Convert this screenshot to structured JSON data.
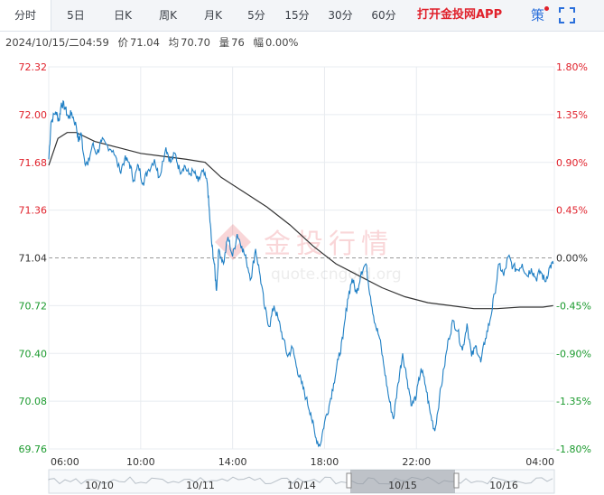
{
  "tabs": [
    {
      "id": "intraday",
      "label": "分时",
      "active": true
    },
    {
      "id": "5day",
      "label": "5日"
    },
    {
      "id": "day",
      "label": "日K"
    },
    {
      "id": "week",
      "label": "周K"
    },
    {
      "id": "month",
      "label": "月K"
    },
    {
      "id": "5min",
      "label": "5分"
    },
    {
      "id": "15min",
      "label": "15分"
    },
    {
      "id": "30min",
      "label": "30分"
    },
    {
      "id": "60min",
      "label": "60分"
    }
  ],
  "promo_text": "打开金投网APP",
  "strategy_label": "策",
  "info": {
    "datetime": "2024/10/15/二04:59",
    "price_label": "价",
    "price": "71.04",
    "avg_label": "均",
    "avg": "70.70",
    "vol_label": "量",
    "vol": "76",
    "amp_label": "幅",
    "amp": "0.00%"
  },
  "watermark": {
    "title": "金投行情",
    "url": "quote.cngold.org"
  },
  "colors": {
    "price_line": "#1f7fc4",
    "avg_line": "#333333",
    "up": "#e0212b",
    "down": "#1b9a2e",
    "neutral": "#333333"
  },
  "chart_data": {
    "type": "line",
    "y_ticks": [
      "72.32",
      "72.00",
      "71.68",
      "71.36",
      "71.04",
      "70.72",
      "70.40",
      "70.08",
      "69.76"
    ],
    "y_tick_values": [
      72.32,
      72.0,
      71.68,
      71.36,
      71.04,
      70.72,
      70.4,
      70.08,
      69.76
    ],
    "pct_ticks": [
      "1.80%",
      "1.35%",
      "0.90%",
      "0.45%",
      "0.00%",
      "-0.45%",
      "-0.90%",
      "-1.35%",
      "-1.80%"
    ],
    "pct_tick_status": [
      "up",
      "up",
      "up",
      "up",
      "neutral",
      "down",
      "down",
      "down",
      "down"
    ],
    "ylim": [
      69.76,
      72.32
    ],
    "reference_price": 71.04,
    "x_ticks": [
      "06:00",
      "10:00",
      "14:00",
      "18:00",
      "22:00",
      "04:00"
    ],
    "x_tick_hours": [
      0,
      4,
      8,
      12,
      16,
      22
    ],
    "x_range_hours": [
      0,
      22
    ],
    "price_series": [
      [
        0,
        71.7
      ],
      [
        0.1,
        71.95
      ],
      [
        0.3,
        72.02
      ],
      [
        0.45,
        71.96
      ],
      [
        0.55,
        72.08
      ],
      [
        0.7,
        72.05
      ],
      [
        0.85,
        71.98
      ],
      [
        1.0,
        72.01
      ],
      [
        1.2,
        71.92
      ],
      [
        1.3,
        71.82
      ],
      [
        1.4,
        71.88
      ],
      [
        1.55,
        71.7
      ],
      [
        1.7,
        71.66
      ],
      [
        1.9,
        71.8
      ],
      [
        2.1,
        71.74
      ],
      [
        2.3,
        71.82
      ],
      [
        2.5,
        71.8
      ],
      [
        2.8,
        71.76
      ],
      [
        3.1,
        71.62
      ],
      [
        3.3,
        71.7
      ],
      [
        3.5,
        71.68
      ],
      [
        3.7,
        71.56
      ],
      [
        3.9,
        71.66
      ],
      [
        4.1,
        71.54
      ],
      [
        4.3,
        71.62
      ],
      [
        4.6,
        71.7
      ],
      [
        4.8,
        71.58
      ],
      [
        5.1,
        71.78
      ],
      [
        5.3,
        71.68
      ],
      [
        5.5,
        71.74
      ],
      [
        5.7,
        71.62
      ],
      [
        5.9,
        71.66
      ],
      [
        6.1,
        71.6
      ],
      [
        6.3,
        71.62
      ],
      [
        6.5,
        71.55
      ],
      [
        6.7,
        71.62
      ],
      [
        6.9,
        71.54
      ],
      [
        7.0,
        71.32
      ],
      [
        7.1,
        71.12
      ],
      [
        7.2,
        71.0
      ],
      [
        7.3,
        70.82
      ],
      [
        7.4,
        71.1
      ],
      [
        7.6,
        71.0
      ],
      [
        7.8,
        71.18
      ],
      [
        8.0,
        71.05
      ],
      [
        8.2,
        71.2
      ],
      [
        8.4,
        71.12
      ],
      [
        8.6,
        71.02
      ],
      [
        8.8,
        70.9
      ],
      [
        9.0,
        71.1
      ],
      [
        9.2,
        70.92
      ],
      [
        9.4,
        70.7
      ],
      [
        9.6,
        70.58
      ],
      [
        9.8,
        70.72
      ],
      [
        10.0,
        70.62
      ],
      [
        10.2,
        70.5
      ],
      [
        10.4,
        70.38
      ],
      [
        10.6,
        70.44
      ],
      [
        10.8,
        70.3
      ],
      [
        11.0,
        70.2
      ],
      [
        11.2,
        70.1
      ],
      [
        11.4,
        70.0
      ],
      [
        11.6,
        69.84
      ],
      [
        11.8,
        69.78
      ],
      [
        12.0,
        69.94
      ],
      [
        12.2,
        70.05
      ],
      [
        12.4,
        70.2
      ],
      [
        12.6,
        70.36
      ],
      [
        12.8,
        70.5
      ],
      [
        13.0,
        70.76
      ],
      [
        13.2,
        70.9
      ],
      [
        13.4,
        70.8
      ],
      [
        13.6,
        70.95
      ],
      [
        13.8,
        71.0
      ],
      [
        14.0,
        70.78
      ],
      [
        14.2,
        70.6
      ],
      [
        14.4,
        70.5
      ],
      [
        14.6,
        70.3
      ],
      [
        14.8,
        70.1
      ],
      [
        15.0,
        69.96
      ],
      [
        15.2,
        70.2
      ],
      [
        15.4,
        70.4
      ],
      [
        15.6,
        70.22
      ],
      [
        15.8,
        70.05
      ],
      [
        16.0,
        70.12
      ],
      [
        16.2,
        70.3
      ],
      [
        16.4,
        70.18
      ],
      [
        16.6,
        70.0
      ],
      [
        16.8,
        69.88
      ],
      [
        17.0,
        70.1
      ],
      [
        17.2,
        70.3
      ],
      [
        17.4,
        70.5
      ],
      [
        17.6,
        70.62
      ],
      [
        17.8,
        70.55
      ],
      [
        18.0,
        70.42
      ],
      [
        18.2,
        70.6
      ],
      [
        18.4,
        70.38
      ],
      [
        18.6,
        70.45
      ],
      [
        18.8,
        70.34
      ],
      [
        19.0,
        70.5
      ],
      [
        19.2,
        70.62
      ],
      [
        19.4,
        70.8
      ],
      [
        19.6,
        71.0
      ],
      [
        19.8,
        70.92
      ],
      [
        20.0,
        71.05
      ],
      [
        20.2,
        70.98
      ],
      [
        20.4,
        70.96
      ],
      [
        20.6,
        71.0
      ],
      [
        20.8,
        70.92
      ],
      [
        21.0,
        70.97
      ],
      [
        21.2,
        70.9
      ],
      [
        21.4,
        70.95
      ],
      [
        21.6,
        70.88
      ],
      [
        21.8,
        70.98
      ],
      [
        21.95,
        71.0
      ]
    ],
    "avg_series": [
      [
        0,
        71.66
      ],
      [
        0.4,
        71.84
      ],
      [
        0.8,
        71.88
      ],
      [
        1.2,
        71.88
      ],
      [
        2.0,
        71.82
      ],
      [
        3.0,
        71.78
      ],
      [
        4.0,
        71.74
      ],
      [
        5.0,
        71.72
      ],
      [
        6.0,
        71.7
      ],
      [
        6.8,
        71.68
      ],
      [
        7.5,
        71.58
      ],
      [
        8.5,
        71.48
      ],
      [
        9.5,
        71.38
      ],
      [
        10.5,
        71.26
      ],
      [
        11.5,
        71.12
      ],
      [
        12.5,
        71.0
      ],
      [
        13.5,
        70.92
      ],
      [
        14.5,
        70.84
      ],
      [
        15.5,
        70.78
      ],
      [
        16.5,
        70.74
      ],
      [
        17.5,
        70.72
      ],
      [
        18.5,
        70.7
      ],
      [
        19.5,
        70.7
      ],
      [
        20.5,
        70.71
      ],
      [
        21.5,
        70.71
      ],
      [
        21.95,
        70.72
      ]
    ],
    "timeline": {
      "labels": [
        "10/10",
        "10/11",
        "10/14",
        "10/15",
        "10/16"
      ],
      "selected": "10/15"
    }
  }
}
